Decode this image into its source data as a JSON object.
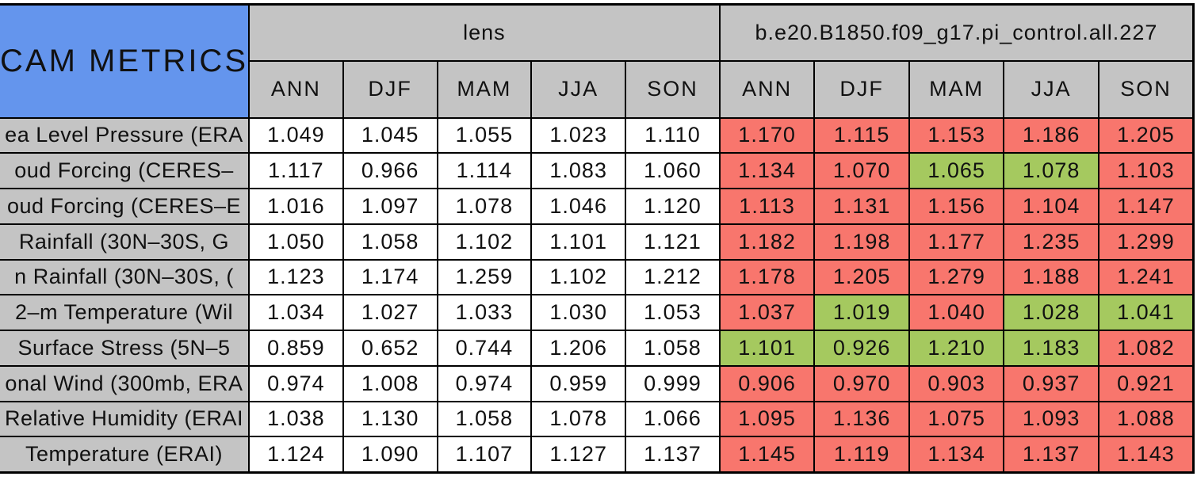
{
  "colors": {
    "title_cell_blue": "#6495ed",
    "header_gray": "#c4c4c4",
    "worse_red": "#f8766d",
    "better_green": "#a5c95f",
    "lens_cell_white": "#ffffff",
    "gridline_black": "#000000"
  },
  "chart_data": {
    "type": "table",
    "title": "CAM METRICS",
    "column_groups": [
      {
        "label": "lens",
        "columns": [
          "ANN",
          "DJF",
          "MAM",
          "JJA",
          "SON"
        ]
      },
      {
        "label": "b.e20.B1850.f09_g17.pi_control.all.227",
        "columns": [
          "ANN",
          "DJF",
          "MAM",
          "JJA",
          "SON"
        ]
      }
    ],
    "rows": [
      {
        "label": "ea Level Pressure (ERA",
        "values": [
          "1.049",
          "1.045",
          "1.055",
          "1.023",
          "1.110",
          "1.170",
          "1.115",
          "1.153",
          "1.186",
          "1.205"
        ],
        "bg": [
          "white",
          "white",
          "white",
          "white",
          "white",
          "red",
          "red",
          "red",
          "red",
          "red"
        ]
      },
      {
        "label": "oud Forcing (CERES–",
        "values": [
          "1.117",
          "0.966",
          "1.114",
          "1.083",
          "1.060",
          "1.134",
          "1.070",
          "1.065",
          "1.078",
          "1.103"
        ],
        "bg": [
          "white",
          "white",
          "white",
          "white",
          "white",
          "red",
          "red",
          "green",
          "green",
          "red"
        ]
      },
      {
        "label": "oud Forcing (CERES–E",
        "values": [
          "1.016",
          "1.097",
          "1.078",
          "1.046",
          "1.120",
          "1.113",
          "1.131",
          "1.156",
          "1.104",
          "1.147"
        ],
        "bg": [
          "white",
          "white",
          "white",
          "white",
          "white",
          "red",
          "red",
          "red",
          "red",
          "red"
        ]
      },
      {
        "label": "Rainfall (30N–30S, G",
        "values": [
          "1.050",
          "1.058",
          "1.102",
          "1.101",
          "1.121",
          "1.182",
          "1.198",
          "1.177",
          "1.235",
          "1.299"
        ],
        "bg": [
          "white",
          "white",
          "white",
          "white",
          "white",
          "red",
          "red",
          "red",
          "red",
          "red"
        ]
      },
      {
        "label": "n Rainfall (30N–30S, (",
        "values": [
          "1.123",
          "1.174",
          "1.259",
          "1.102",
          "1.212",
          "1.178",
          "1.205",
          "1.279",
          "1.188",
          "1.241"
        ],
        "bg": [
          "white",
          "white",
          "white",
          "white",
          "white",
          "red",
          "red",
          "red",
          "red",
          "red"
        ]
      },
      {
        "label": "2–m Temperature (Wil",
        "values": [
          "1.034",
          "1.027",
          "1.033",
          "1.030",
          "1.053",
          "1.037",
          "1.019",
          "1.040",
          "1.028",
          "1.041"
        ],
        "bg": [
          "white",
          "white",
          "white",
          "white",
          "white",
          "red",
          "green",
          "red",
          "green",
          "green"
        ]
      },
      {
        "label": "Surface Stress (5N–5",
        "values": [
          "0.859",
          "0.652",
          "0.744",
          "1.206",
          "1.058",
          "1.101",
          "0.926",
          "1.210",
          "1.183",
          "1.082"
        ],
        "bg": [
          "white",
          "white",
          "white",
          "white",
          "white",
          "green",
          "green",
          "green",
          "green",
          "red"
        ]
      },
      {
        "label": "onal Wind (300mb, ERA",
        "values": [
          "0.974",
          "1.008",
          "0.974",
          "0.959",
          "0.999",
          "0.906",
          "0.970",
          "0.903",
          "0.937",
          "0.921"
        ],
        "bg": [
          "white",
          "white",
          "white",
          "white",
          "white",
          "red",
          "red",
          "red",
          "red",
          "red"
        ]
      },
      {
        "label": "Relative Humidity (ERAI",
        "values": [
          "1.038",
          "1.130",
          "1.058",
          "1.078",
          "1.066",
          "1.095",
          "1.136",
          "1.075",
          "1.093",
          "1.088"
        ],
        "bg": [
          "white",
          "white",
          "white",
          "white",
          "white",
          "red",
          "red",
          "red",
          "red",
          "red"
        ]
      },
      {
        "label": "Temperature (ERAI)",
        "values": [
          "1.124",
          "1.090",
          "1.107",
          "1.127",
          "1.137",
          "1.145",
          "1.119",
          "1.134",
          "1.137",
          "1.143"
        ],
        "bg": [
          "white",
          "white",
          "white",
          "white",
          "white",
          "red",
          "red",
          "red",
          "red",
          "red"
        ]
      }
    ]
  }
}
